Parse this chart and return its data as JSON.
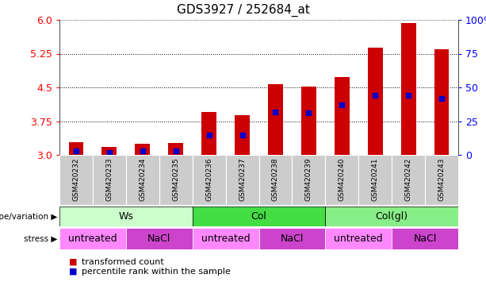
{
  "title": "GDS3927 / 252684_at",
  "samples": [
    "GSM420232",
    "GSM420233",
    "GSM420234",
    "GSM420235",
    "GSM420236",
    "GSM420237",
    "GSM420238",
    "GSM420239",
    "GSM420240",
    "GSM420241",
    "GSM420242",
    "GSM420243"
  ],
  "transformed_count": [
    3.28,
    3.18,
    3.24,
    3.27,
    3.95,
    3.88,
    4.57,
    4.52,
    4.73,
    5.38,
    5.93,
    5.35
  ],
  "percentile_rank": [
    3,
    2,
    3,
    3,
    15,
    15,
    32,
    31,
    37,
    44,
    44,
    42
  ],
  "y_min": 3.0,
  "y_max": 6.0,
  "y_ticks_left": [
    3.0,
    3.75,
    4.5,
    5.25,
    6.0
  ],
  "y_ticks_right": [
    0,
    25,
    50,
    75,
    100
  ],
  "bar_color": "#cc0000",
  "percentile_color": "#0000cc",
  "bar_width": 0.45,
  "genotype_groups": [
    {
      "label": "Ws",
      "start": 0,
      "end": 4,
      "color": "#ccffcc"
    },
    {
      "label": "Col",
      "start": 4,
      "end": 8,
      "color": "#44dd44"
    },
    {
      "label": "Col(gl)",
      "start": 8,
      "end": 12,
      "color": "#88ee88"
    }
  ],
  "stress_groups": [
    {
      "label": "untreated",
      "start": 0,
      "end": 2,
      "color": "#ff88ff"
    },
    {
      "label": "NaCl",
      "start": 2,
      "end": 4,
      "color": "#cc44cc"
    },
    {
      "label": "untreated",
      "start": 4,
      "end": 6,
      "color": "#ff88ff"
    },
    {
      "label": "NaCl",
      "start": 6,
      "end": 8,
      "color": "#cc44cc"
    },
    {
      "label": "untreated",
      "start": 8,
      "end": 10,
      "color": "#ff88ff"
    },
    {
      "label": "NaCl",
      "start": 10,
      "end": 12,
      "color": "#cc44cc"
    }
  ],
  "legend_red": "transformed count",
  "legend_blue": "percentile rank within the sample",
  "genotype_label": "genotype/variation",
  "stress_label": "stress",
  "xtick_bg": "#d0d0d0",
  "plot_bg": "#ffffff"
}
